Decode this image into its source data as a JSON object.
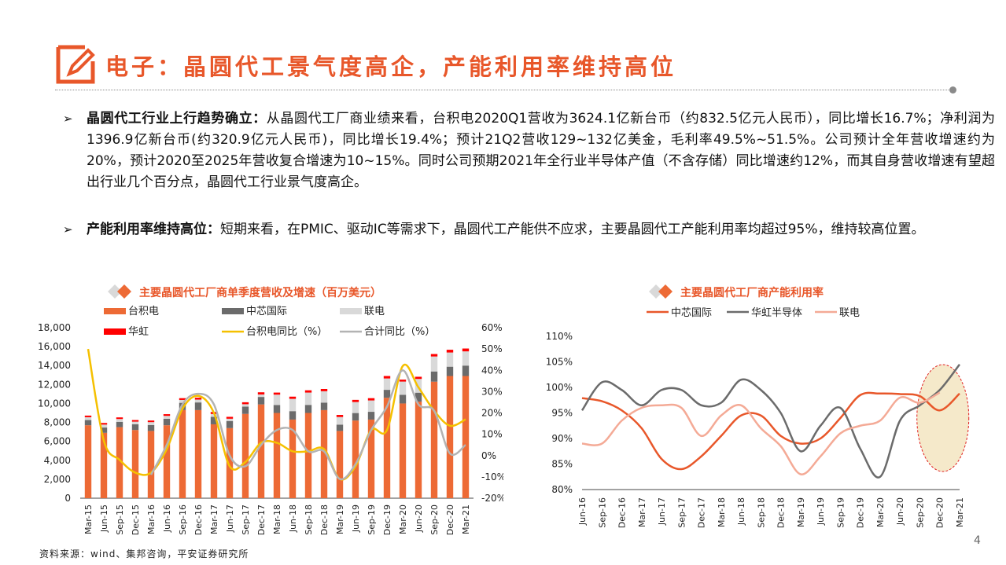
{
  "title": "电子：晶圆代工景气度高企，产能利用率维持高位",
  "bullets": [
    {
      "head": "晶圆代工行业上行趋势确立：",
      "body": "从晶圆代工厂商业绩来看，台积电2020Q1营收为3624.1亿新台币（约832.5亿元人民币），同比增长16.7%；净利润为1396.9亿新台币(约320.9亿元人民币)，同比增长19.4%；预计21Q2营收129~132亿美金，毛利率49.5%~51.5%。公司预计全年营收增速约为20%，预计2020至2025年营收复合增速为10~15%。同时公司预期2021年全行业半导体产值（不含存储）同比增速约12%，而其自身营收增速有望超出行业几个百分点，晶圆代工行业景气度高企。"
    },
    {
      "head": "产能利用率维持高位：",
      "body": "短期来看，在PMIC、驱动IC等需求下，晶圆代工产能供不应求，主要晶圆代工产能利用率均超过95%，维持较高位置。"
    }
  ],
  "chart_data": [
    {
      "type": "bar",
      "title": "主要晶圆代工厂商单季度营收及增速（百万美元）",
      "categories": [
        "Mar-15",
        "Jun-15",
        "Sep-15",
        "Dec-15",
        "Mar-16",
        "Jun-16",
        "Sep-16",
        "Dec-16",
        "Mar-17",
        "Jun-17",
        "Sep-17",
        "Dec-17",
        "Mar-18",
        "Jun-18",
        "Sep-18",
        "Dec-18",
        "Mar-19",
        "Jun-19",
        "Sep-19",
        "Dec-19",
        "Mar-20",
        "Jun-20",
        "Sep-20",
        "Dec-20",
        "Mar-21"
      ],
      "series": [
        {
          "name": "台积电",
          "kind": "bar",
          "color": "#ed6a35",
          "values": [
            7700,
            6900,
            7500,
            7200,
            7100,
            7700,
            9300,
            9300,
            7800,
            7400,
            8900,
            9900,
            9000,
            8300,
            9000,
            9300,
            7100,
            8200,
            8300,
            10600,
            10000,
            10200,
            12300,
            12900,
            12900
          ]
        },
        {
          "name": "中芯国际",
          "kind": "bar",
          "color": "#6b6b6b",
          "values": [
            550,
            560,
            560,
            610,
            630,
            690,
            770,
            810,
            790,
            750,
            770,
            790,
            830,
            890,
            850,
            790,
            670,
            790,
            820,
            840,
            910,
            940,
            1080,
            980,
            1100
          ]
        },
        {
          "name": "联电",
          "kind": "bar",
          "color": "#d9d9d9",
          "values": [
            300,
            310,
            300,
            270,
            300,
            300,
            300,
            300,
            300,
            240,
            250,
            260,
            1100,
            1300,
            1300,
            1200,
            800,
            1160,
            1200,
            1200,
            1400,
            1450,
            1580,
            1500,
            1500
          ]
        },
        {
          "name": "华虹",
          "kind": "bar",
          "color": "#ff0000",
          "values": [
            170,
            170,
            170,
            170,
            170,
            180,
            190,
            200,
            210,
            200,
            210,
            230,
            220,
            230,
            240,
            240,
            220,
            230,
            240,
            260,
            210,
            230,
            260,
            290,
            300
          ]
        },
        {
          "name": "台积电同比（%）",
          "kind": "line",
          "color": "#f5c000",
          "values": [
            50,
            7,
            -2,
            -8,
            -8,
            3,
            22,
            28,
            20,
            -5,
            -3,
            6,
            6,
            2,
            2,
            3,
            -11,
            -5,
            12,
            12,
            42,
            32,
            21,
            14,
            17
          ]
        },
        {
          "name": "合计同比（%）",
          "kind": "line",
          "color": "#b3b3b3",
          "values": [
            null,
            null,
            null,
            null,
            -9,
            5,
            24,
            29,
            24,
            0,
            -5,
            5,
            12,
            12,
            2,
            2,
            -11,
            -4,
            12,
            23,
            40,
            24,
            21,
            1,
            5
          ]
        }
      ],
      "left_axis": {
        "min": 0,
        "max": 18000,
        "ticks": [
          "0",
          "2,000",
          "4,000",
          "6,000",
          "8,000",
          "10,000",
          "12,000",
          "14,000",
          "16,000",
          "18,000"
        ]
      },
      "right_axis": {
        "min": -20,
        "max": 60,
        "ticks": [
          "-20%",
          "-10%",
          "0%",
          "10%",
          "20%",
          "30%",
          "40%",
          "50%",
          "60%"
        ]
      },
      "legend_placement": "top"
    },
    {
      "type": "line",
      "title": "主要晶圆代工厂商产能利用率",
      "categories": [
        "Jun-16",
        "Sep-16",
        "Dec-16",
        "Mar-17",
        "Jun-17",
        "Sep-17",
        "Dec-17",
        "Mar-18",
        "Jun-18",
        "Sep-18",
        "Dec-18",
        "Mar-19",
        "Jun-19",
        "Sep-19",
        "Dec-19",
        "Mar-20",
        "Jun-20",
        "Sep-20",
        "Dec-20",
        "Mar-21"
      ],
      "series": [
        {
          "name": "中芯国际",
          "color": "#e8572a",
          "values": [
            97.9,
            97.3,
            95.5,
            92.0,
            86.0,
            84.0,
            86.5,
            90.5,
            94.5,
            94.5,
            90.5,
            89.0,
            90.0,
            94.0,
            98.5,
            98.8,
            98.7,
            98.3,
            95.5,
            98.8
          ]
        },
        {
          "name": "华虹半导体",
          "color": "#6b6b6b",
          "values": [
            95.5,
            101.0,
            99.5,
            96.5,
            99.5,
            99.5,
            96.5,
            97.0,
            101.5,
            99.5,
            95.0,
            87.5,
            92.5,
            96.0,
            88.0,
            82.5,
            93.5,
            96.5,
            99.5,
            104.5
          ]
        },
        {
          "name": "联电",
          "color": "#f4aa96",
          "values": [
            89.0,
            89.0,
            93.5,
            96.0,
            96.5,
            96.0,
            90.5,
            94.5,
            96.5,
            92.0,
            88.5,
            83.0,
            86.5,
            91.0,
            92.5,
            93.5,
            98.0,
            97.0,
            99.0,
            null
          ]
        }
      ],
      "y_axis": {
        "min": 80,
        "max": 110,
        "ticks": [
          "80%",
          "85%",
          "90%",
          "95%",
          "100%",
          "105%",
          "110%"
        ]
      },
      "legend_placement": "top"
    }
  ],
  "source": "资料来源：wind、集邦咨询，平安证券研究所",
  "page_number": "4"
}
